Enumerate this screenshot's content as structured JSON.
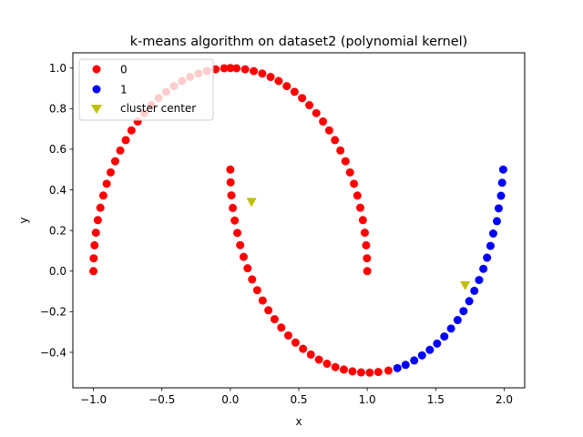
{
  "chart_data": {
    "type": "scatter",
    "title": "k-means algorithm on dataset2 (polynomial kernel)",
    "xlabel": "x",
    "ylabel": "y",
    "xlim": [
      -1.15,
      2.15
    ],
    "ylim": [
      -0.575,
      1.075
    ],
    "xticks": [
      {
        "value": -1.0,
        "label": "−1.0"
      },
      {
        "value": -0.5,
        "label": "−0.5"
      },
      {
        "value": 0.0,
        "label": "0.0"
      },
      {
        "value": 0.5,
        "label": "0.5"
      },
      {
        "value": 1.0,
        "label": "1.0"
      },
      {
        "value": 1.5,
        "label": "1.5"
      },
      {
        "value": 2.0,
        "label": "2.0"
      }
    ],
    "yticks": [
      {
        "value": -0.4,
        "label": "−0.4"
      },
      {
        "value": -0.2,
        "label": "−0.2"
      },
      {
        "value": 0.0,
        "label": "0.0"
      },
      {
        "value": 0.2,
        "label": "0.2"
      },
      {
        "value": 0.4,
        "label": "0.4"
      },
      {
        "value": 0.6,
        "label": "0.6"
      },
      {
        "value": 0.8,
        "label": "0.8"
      },
      {
        "value": 1.0,
        "label": "1.0"
      }
    ],
    "grid": false,
    "legend_position": "top-left",
    "series": [
      {
        "name": "0",
        "color": "#ff0000",
        "marker": "circle",
        "points": [
          [
            -1.0,
            0.0
          ],
          [
            -0.998,
            0.063
          ],
          [
            -0.992,
            0.127
          ],
          [
            -0.982,
            0.189
          ],
          [
            -0.968,
            0.251
          ],
          [
            -0.949,
            0.312
          ],
          [
            -0.928,
            0.372
          ],
          [
            -0.903,
            0.43
          ],
          [
            -0.874,
            0.486
          ],
          [
            -0.841,
            0.541
          ],
          [
            -0.804,
            0.594
          ],
          [
            -0.764,
            0.645
          ],
          [
            -0.722,
            0.693
          ],
          [
            -0.677,
            0.737
          ],
          [
            -0.628,
            0.778
          ],
          [
            -0.577,
            0.817
          ],
          [
            -0.524,
            0.852
          ],
          [
            -0.469,
            0.883
          ],
          [
            -0.412,
            0.911
          ],
          [
            -0.353,
            0.936
          ],
          [
            -0.294,
            0.956
          ],
          [
            -0.233,
            0.973
          ],
          [
            -0.171,
            0.985
          ],
          [
            -0.108,
            0.994
          ],
          [
            -0.045,
            0.999
          ],
          [
            0.0,
            1.0
          ],
          [
            0.045,
            0.999
          ],
          [
            0.108,
            0.994
          ],
          [
            0.171,
            0.985
          ],
          [
            0.233,
            0.973
          ],
          [
            0.294,
            0.956
          ],
          [
            0.353,
            0.936
          ],
          [
            0.412,
            0.911
          ],
          [
            0.469,
            0.883
          ],
          [
            0.524,
            0.852
          ],
          [
            0.577,
            0.817
          ],
          [
            0.628,
            0.778
          ],
          [
            0.677,
            0.737
          ],
          [
            0.722,
            0.693
          ],
          [
            0.764,
            0.645
          ],
          [
            0.804,
            0.594
          ],
          [
            0.841,
            0.541
          ],
          [
            0.874,
            0.486
          ],
          [
            0.903,
            0.43
          ],
          [
            0.928,
            0.372
          ],
          [
            0.949,
            0.312
          ],
          [
            0.968,
            0.251
          ],
          [
            0.982,
            0.189
          ],
          [
            0.992,
            0.127
          ],
          [
            0.998,
            0.063
          ],
          [
            1.0,
            0.0
          ],
          [
            0.0,
            0.5
          ],
          [
            0.002,
            0.437
          ],
          [
            0.008,
            0.373
          ],
          [
            0.018,
            0.311
          ],
          [
            0.032,
            0.249
          ],
          [
            0.051,
            0.188
          ],
          [
            0.072,
            0.128
          ],
          [
            0.097,
            0.07
          ],
          [
            0.126,
            0.014
          ],
          [
            0.159,
            -0.041
          ],
          [
            0.196,
            -0.094
          ],
          [
            0.236,
            -0.145
          ],
          [
            0.278,
            -0.193
          ],
          [
            0.323,
            -0.237
          ],
          [
            0.372,
            -0.278
          ],
          [
            0.423,
            -0.317
          ],
          [
            0.476,
            -0.352
          ],
          [
            0.531,
            -0.383
          ],
          [
            0.588,
            -0.411
          ],
          [
            0.647,
            -0.436
          ],
          [
            0.706,
            -0.456
          ],
          [
            0.767,
            -0.473
          ],
          [
            0.829,
            -0.485
          ],
          [
            0.892,
            -0.494
          ],
          [
            0.955,
            -0.499
          ],
          [
            1.018,
            -0.5
          ],
          [
            1.081,
            -0.497
          ],
          [
            1.155,
            -0.49
          ]
        ]
      },
      {
        "name": "1",
        "color": "#0000ff",
        "marker": "circle",
        "points": [
          [
            1.22,
            -0.478
          ],
          [
            1.28,
            -0.462
          ],
          [
            1.343,
            -0.44
          ],
          [
            1.4,
            -0.415
          ],
          [
            1.457,
            -0.388
          ],
          [
            1.51,
            -0.357
          ],
          [
            1.563,
            -0.322
          ],
          [
            1.612,
            -0.283
          ],
          [
            1.66,
            -0.241
          ],
          [
            1.703,
            -0.197
          ],
          [
            1.745,
            -0.148
          ],
          [
            1.782,
            -0.097
          ],
          [
            1.817,
            -0.044
          ],
          [
            1.848,
            0.011
          ],
          [
            1.875,
            0.066
          ],
          [
            1.9,
            0.124
          ],
          [
            1.92,
            0.185
          ],
          [
            1.947,
            0.246
          ],
          [
            1.96,
            0.309
          ],
          [
            1.977,
            0.371
          ],
          [
            1.985,
            0.435
          ],
          [
            1.993,
            0.5
          ]
        ]
      }
    ],
    "centers": {
      "name": "cluster center",
      "color": "#bfbf00",
      "marker": "triangle-down",
      "points": [
        [
          0.155,
          0.34
        ],
        [
          1.715,
          -0.07
        ]
      ]
    }
  }
}
